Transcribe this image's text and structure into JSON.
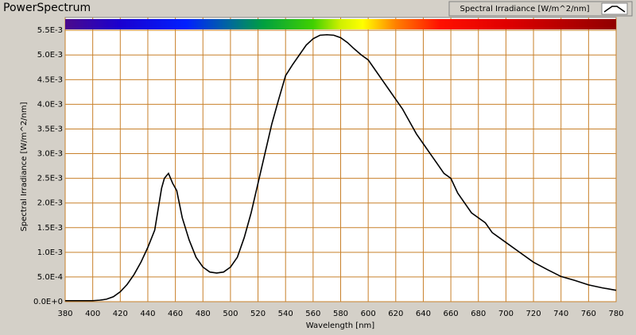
{
  "chart_data": {
    "type": "line",
    "title": "PowerSpectrum",
    "x_label": "Wavelength [nm]",
    "y_label": "Spectral Irradiance [W/m^2/nm]",
    "x": [
      380,
      390,
      400,
      405,
      410,
      415,
      420,
      425,
      430,
      435,
      440,
      445,
      450,
      452,
      455,
      458,
      461,
      465,
      470,
      475,
      480,
      485,
      490,
      495,
      500,
      505,
      510,
      515,
      520,
      525,
      530,
      535,
      540,
      545,
      550,
      555,
      560,
      565,
      570,
      575,
      580,
      585,
      590,
      595,
      600,
      605,
      610,
      615,
      620,
      625,
      630,
      635,
      640,
      645,
      650,
      655,
      660,
      665,
      670,
      675,
      680,
      685,
      690,
      695,
      700,
      710,
      720,
      730,
      740,
      750,
      760,
      770,
      780
    ],
    "series": [
      {
        "name": "Spectral Irradiance [W/m^2/nm]",
        "color": "#000000",
        "values": [
          2e-05,
          2e-05,
          2e-05,
          3e-05,
          5e-05,
          0.0001,
          0.0002,
          0.00035,
          0.00055,
          0.0008,
          0.0011,
          0.00145,
          0.0023,
          0.0025,
          0.0026,
          0.0024,
          0.00225,
          0.0017,
          0.00125,
          0.0009,
          0.0007,
          0.0006,
          0.00058,
          0.0006,
          0.0007,
          0.0009,
          0.0013,
          0.0018,
          0.0024,
          0.003,
          0.0036,
          0.0041,
          0.00458,
          0.0048,
          0.005,
          0.0052,
          0.00533,
          0.0054,
          0.00541,
          0.0054,
          0.00535,
          0.00525,
          0.00512,
          0.005,
          0.0049,
          0.0047,
          0.0045,
          0.0043,
          0.0041,
          0.0039,
          0.00365,
          0.0034,
          0.0032,
          0.003,
          0.0028,
          0.0026,
          0.0025,
          0.0022,
          0.002,
          0.0018,
          0.0017,
          0.0016,
          0.0014,
          0.0013,
          0.0012,
          0.001,
          0.0008,
          0.00065,
          0.00051,
          0.00043,
          0.00034,
          0.00028,
          0.00023
        ]
      }
    ],
    "xlim": [
      380,
      780
    ],
    "xticks": [
      380,
      400,
      420,
      440,
      460,
      480,
      500,
      520,
      540,
      560,
      580,
      600,
      620,
      640,
      660,
      680,
      700,
      720,
      740,
      760,
      780
    ],
    "ylim": [
      0,
      0.00576
    ],
    "yticks": [
      {
        "value": 0,
        "label": "0.0E+0"
      },
      {
        "value": 0.0005,
        "label": "5.0E-4"
      },
      {
        "value": 0.001,
        "label": "1.0E-3"
      },
      {
        "value": 0.0015,
        "label": "1.5E-3"
      },
      {
        "value": 0.002,
        "label": "2.0E-3"
      },
      {
        "value": 0.0025,
        "label": "2.5E-3"
      },
      {
        "value": 0.003,
        "label": "3.0E-3"
      },
      {
        "value": 0.0035,
        "label": "3.5E-3"
      },
      {
        "value": 0.004,
        "label": "4.0E-3"
      },
      {
        "value": 0.0045,
        "label": "4.5E-3"
      },
      {
        "value": 0.005,
        "label": "5.0E-3"
      },
      {
        "value": 0.0055,
        "label": "5.5E-3"
      }
    ],
    "grid": true,
    "grid_color": "#c8802a"
  }
}
